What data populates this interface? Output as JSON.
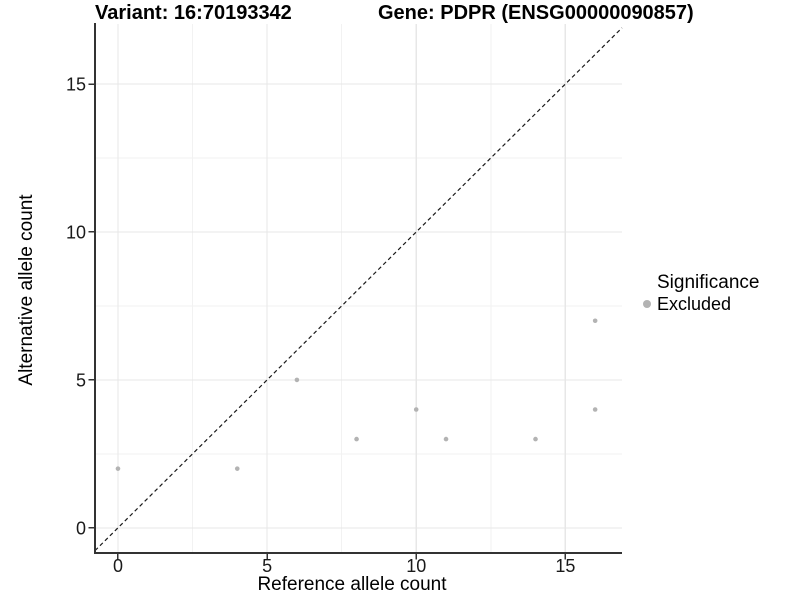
{
  "chart_data": {
    "type": "scatter",
    "title_left": "Variant: 16:70193342",
    "title_right": "Gene: PDPR (ENSG00000090857)",
    "xlabel": "Reference allele count",
    "ylabel": "Alternative allele count",
    "xlim": [
      -0.77,
      16.9
    ],
    "ylim": [
      -0.85,
      17.03
    ],
    "x_ticks": [
      0,
      5,
      10,
      15
    ],
    "y_ticks": [
      0,
      5,
      10,
      15
    ],
    "x_minor_gridlines": [
      2.5,
      7.5,
      12.5
    ],
    "y_minor_gridlines": [
      2.5,
      7.5,
      12.5
    ],
    "grid": "major-and-minor",
    "legend_position": "right",
    "series": [
      {
        "name": "Excluded",
        "color": "#b3b3b3",
        "points": [
          [
            0,
            2
          ],
          [
            4,
            2
          ],
          [
            6,
            5
          ],
          [
            8,
            3
          ],
          [
            10,
            4
          ],
          [
            11,
            3
          ],
          [
            14,
            3
          ],
          [
            16,
            4
          ],
          [
            16,
            7
          ]
        ]
      }
    ],
    "identity_line": {
      "slope": 1,
      "intercept": 0,
      "style": "dashed",
      "color": "#1a1a1a"
    },
    "legend": {
      "title": "Significance",
      "items": [
        {
          "label": "Excluded",
          "color": "#b3b3b3"
        }
      ]
    },
    "colors": {
      "background": "#ffffff",
      "grid_major": "#e7e7e7",
      "grid_minor": "#f2f2f2",
      "axis_line": "#333333",
      "tick_mark": "#333333",
      "tick_label": "#1a1a1a",
      "point": "#b3b3b3"
    }
  }
}
